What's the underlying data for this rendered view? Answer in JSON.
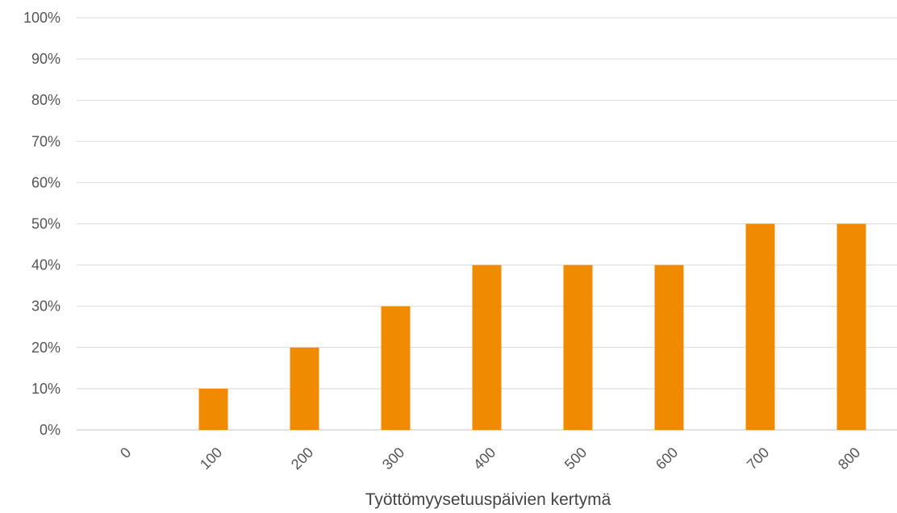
{
  "chart_data": {
    "type": "bar",
    "title": "",
    "xlabel": "Työttömyysetuuspäivien kertymä",
    "ylabel": "",
    "categories": [
      "0",
      "100",
      "200",
      "300",
      "400",
      "500",
      "600",
      "700",
      "800"
    ],
    "values": [
      0,
      10,
      20,
      30,
      40,
      40,
      40,
      50,
      50
    ],
    "y_ticks": [
      "0%",
      "10%",
      "20%",
      "30%",
      "40%",
      "50%",
      "60%",
      "70%",
      "80%",
      "90%",
      "100%"
    ],
    "ylim": [
      0,
      100
    ],
    "grid": true,
    "legend": "none",
    "bar_color": "#F08A00",
    "grid_color": "#D9D9D9"
  }
}
